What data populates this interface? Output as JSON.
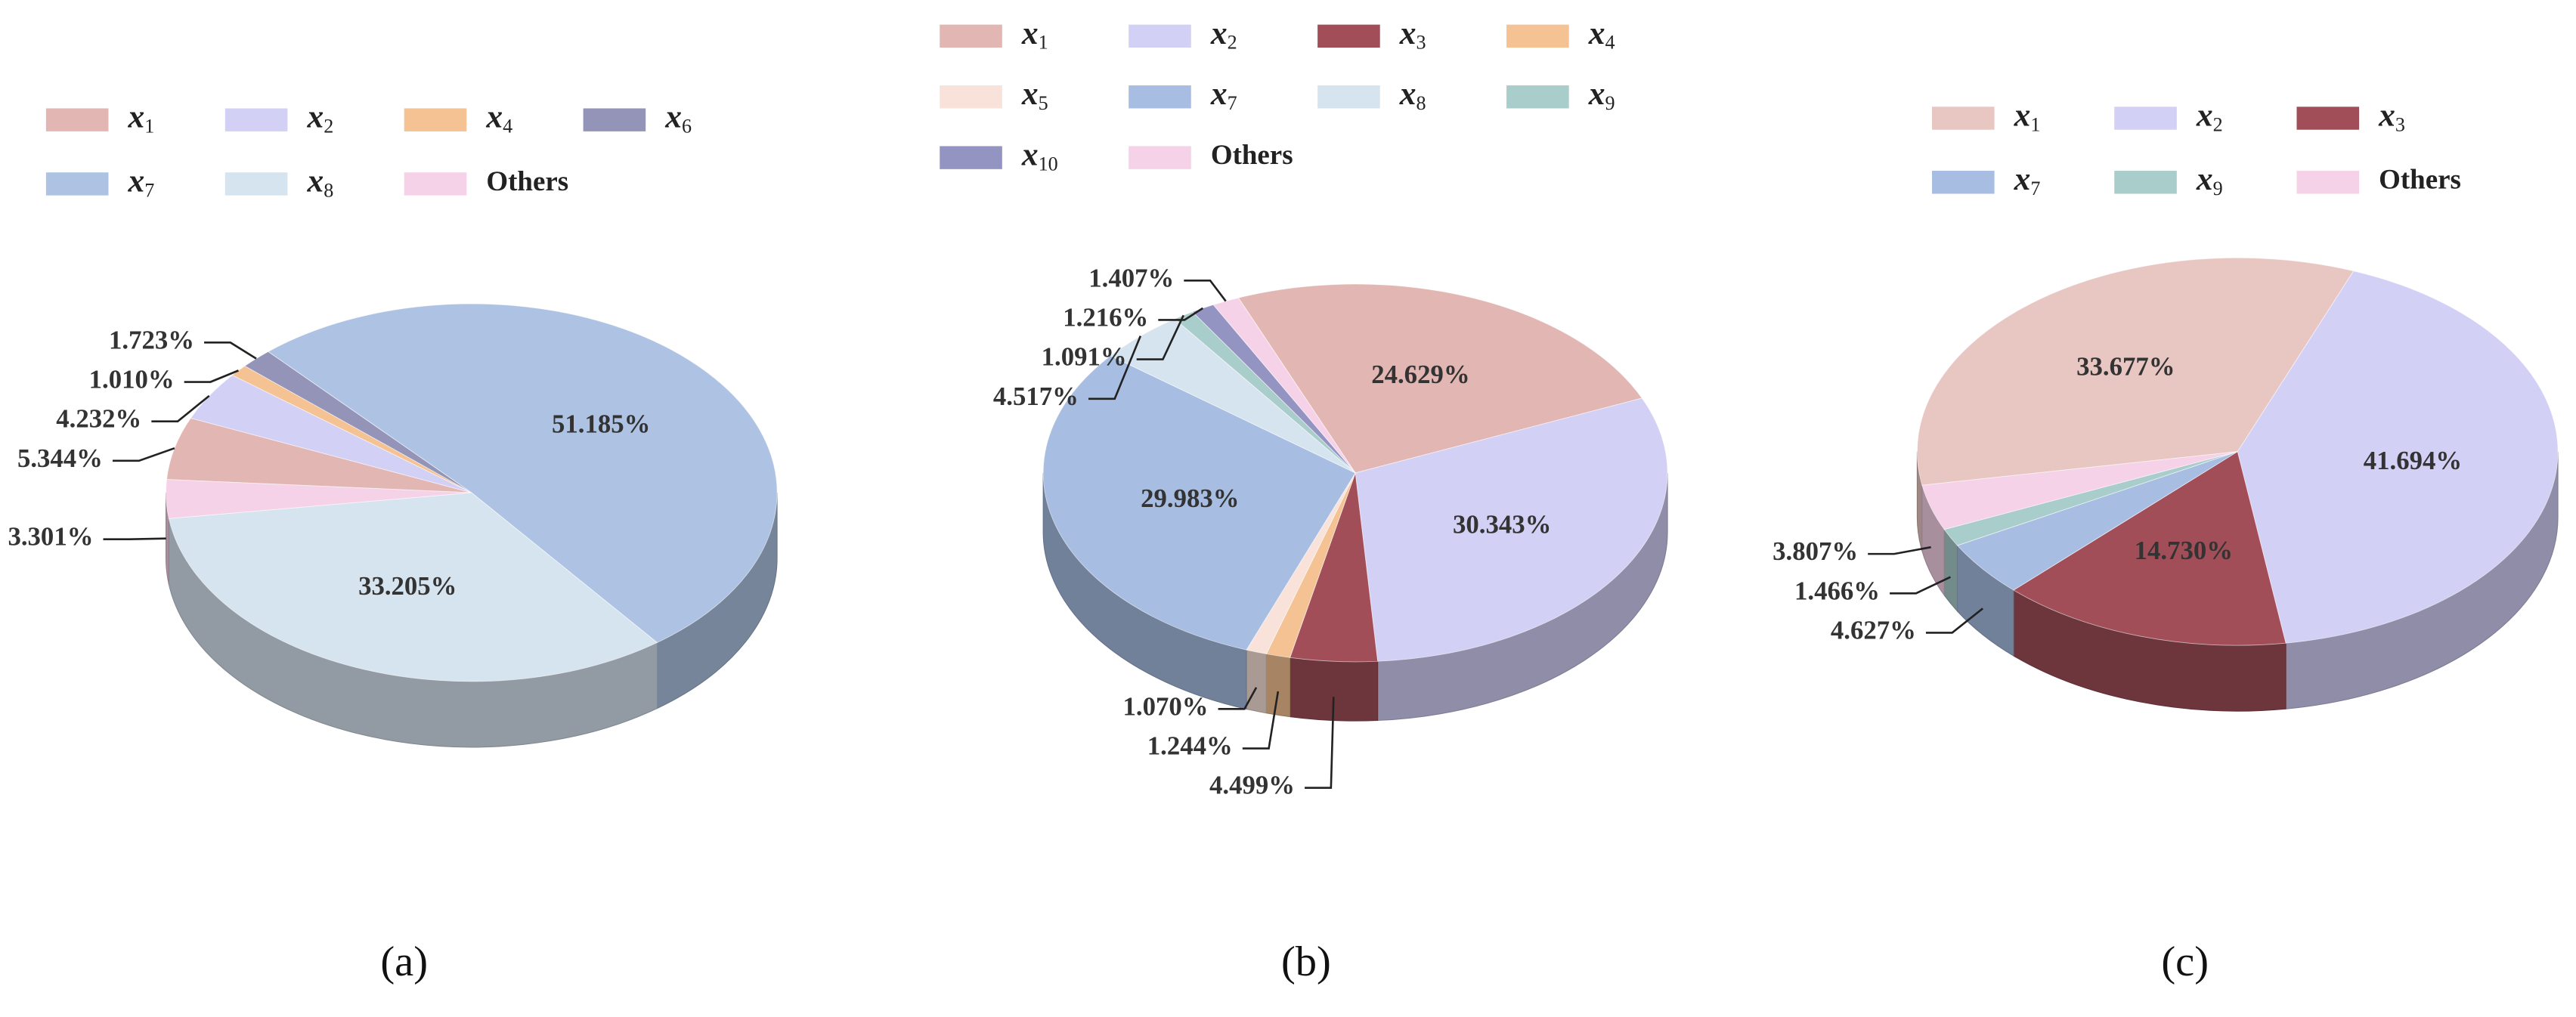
{
  "chart_data": [
    {
      "type": "pie",
      "caption": "(a)",
      "categories": [
        "x1",
        "x2",
        "x4",
        "x6",
        "x7",
        "x8",
        "Others"
      ],
      "values": [
        5.344,
        4.232,
        1.01,
        1.723,
        51.185,
        33.205,
        3.301
      ],
      "value_labels": [
        "5.344%",
        "4.232%",
        "1.010%",
        "1.723%",
        "51.185%",
        "33.205%",
        "3.301%"
      ],
      "colors": [
        "#e2b6b2",
        "#d3d0f6",
        "#f4c293",
        "#9494b8",
        "#aec3e3",
        "#d6e4ef",
        "#f6d2e8"
      ]
    },
    {
      "type": "pie",
      "caption": "(b)",
      "categories": [
        "x1",
        "x2",
        "x3",
        "x4",
        "x5",
        "x7",
        "x8",
        "x9",
        "x10",
        "Others"
      ],
      "values": [
        24.629,
        30.343,
        4.499,
        1.244,
        1.07,
        29.983,
        4.517,
        1.091,
        1.216,
        1.407
      ],
      "value_labels": [
        "24.629%",
        "30.343%",
        "4.499%",
        "1.244%",
        "1.070%",
        "29.983%",
        "4.517%",
        "1.091%",
        "1.216%",
        "1.407%"
      ],
      "colors": [
        "#e2b6b2",
        "#d3d0f6",
        "#a14e58",
        "#f4c293",
        "#f8e2da",
        "#a8bde2",
        "#d6e4ef",
        "#a9cdcb",
        "#9494c2",
        "#f6d2e8"
      ]
    },
    {
      "type": "pie",
      "caption": "(c)",
      "categories": [
        "x1",
        "x2",
        "x3",
        "x7",
        "x9",
        "Others"
      ],
      "values": [
        33.677,
        41.694,
        14.73,
        4.627,
        1.466,
        3.807
      ],
      "value_labels": [
        "33.677%",
        "41.694%",
        "14.730%",
        "4.627%",
        "1.466%",
        "3.807%"
      ],
      "colors": [
        "#e8c6c2",
        "#d3d0f6",
        "#a14e58",
        "#a8bde2",
        "#a9cdcb",
        "#f6d2e8"
      ]
    }
  ]
}
